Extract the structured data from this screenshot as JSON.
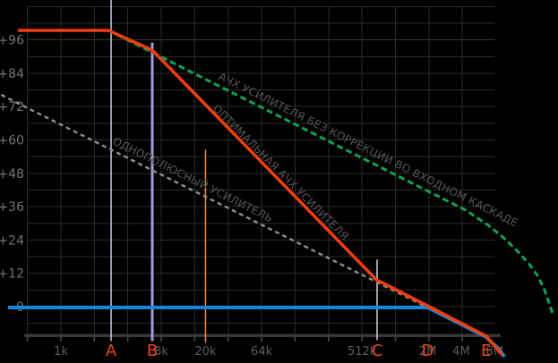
{
  "chart_data": {
    "type": "line",
    "title": "",
    "description": "Amplifier gain (dB) versus frequency (log scale) Bode magnitude plot with correction break-point markers A-E",
    "x_axis": {
      "unit": "Hz",
      "scale": "log",
      "grid_interval": "octave",
      "grid_from_hz": 500,
      "grid_to_hz": 8000000,
      "ticks": [
        {
          "label": "1k",
          "hz": 1000
        },
        {
          "label": "8k",
          "hz": 8000
        },
        {
          "label": "20k",
          "hz": 20000
        },
        {
          "label": "64k",
          "hz": 64000
        },
        {
          "label": "512k",
          "hz": 512000
        },
        {
          "label": "2M",
          "hz": 2000000
        },
        {
          "label": "4M",
          "hz": 4000000
        },
        {
          "label": "8M",
          "hz": 8000000
        }
      ]
    },
    "y_axis": {
      "unit": "dB",
      "grid_step_db": 6,
      "top_db": 108,
      "bottom_db": -6,
      "ticks": [
        {
          "label": "+96",
          "db": 96
        },
        {
          "label": "+84",
          "db": 84
        },
        {
          "label": "+72",
          "db": 72
        },
        {
          "label": "+60",
          "db": 60
        },
        {
          "label": "+48",
          "db": 48
        },
        {
          "label": "+36",
          "db": 36
        },
        {
          "label": "+24",
          "db": 24
        },
        {
          "label": "+12",
          "db": 12
        },
        {
          "label": "0",
          "db": 0
        }
      ]
    },
    "series": [
      {
        "name": "single-pole-amplifier",
        "annotation": "ОДНОПОЛЮСНЫЙ УСИЛИТЕЛЬ",
        "color": "#8f8f8f",
        "dash": "5 4",
        "width": 2.4,
        "points": [
          [
            290,
            76.2
          ],
          [
            7100000,
            -11.3
          ]
        ]
      },
      {
        "name": "uncorrected-input-stage",
        "annotation": "АЧХ УСИЛИТЕЛЯ БЕЗ КОРРЕКЦИИ ВО ВХОДНОМ КАСКАДЕ",
        "color": "#10a156",
        "dash": "7 4",
        "width": 3,
        "points": [
          [
            2680,
            99.4
          ],
          [
            4400000,
            34.7
          ],
          [
            7000000,
            29.3
          ],
          [
            10100000,
            24.1
          ],
          [
            13300000,
            19.3
          ],
          [
            16600000,
            15.1
          ],
          [
            19600000,
            10.9
          ],
          [
            22300000,
            6.4
          ],
          [
            24400000,
            1.9
          ],
          [
            26700000,
            -2.6
          ]
        ]
      },
      {
        "name": "unity-gain-line",
        "annotation": "",
        "color": "#1589e0",
        "dash": "",
        "width": 4,
        "points": [
          [
            334,
            -0.3
          ],
          [
            2000000,
            -0.3
          ],
          [
            6700000,
            -10.9
          ],
          [
            8600000,
            -15.1
          ],
          [
            9800000,
            -18
          ]
        ]
      },
      {
        "name": "optimal-response",
        "annotation": "ОПТИМАЛЬНАЯ АЧХ УСИЛИТЕЛЯ",
        "color": "#f23d0d",
        "dash": "",
        "width": 3.5,
        "points": [
          [
            410,
            99.4
          ],
          [
            2680,
            99.4
          ],
          [
            6640,
            92.3
          ],
          [
            690000,
            9.7
          ],
          [
            2000000,
            0.3
          ],
          [
            6700000,
            -10.6
          ],
          [
            9400000,
            -17.4
          ]
        ]
      }
    ],
    "annotations": [
      {
        "text": "АЧХ УСИЛИТЕЛЯ БЕЗ КОРРЕКЦИИ ВО ВХОДНОМ КАСКАДЕ",
        "hz": 25800,
        "db": 82.0,
        "slope_db_per_octave": -6,
        "color": "#575757",
        "font_px": 12,
        "spacing": 0.2
      },
      {
        "text": "ОПТИМАЛЬНАЯ АЧХ УСИЛИТЕЛЯ",
        "hz": 23000,
        "db": 71.1,
        "slope_db_per_octave": -12,
        "color": "#575757",
        "font_px": 12,
        "spacing": 0.2
      },
      {
        "text": "ОДНОПОЛЮСНЫЙ УСИЛИТЕЛЬ",
        "hz": 2880,
        "db": 58.7,
        "slope_db_per_octave": -6,
        "color": "#575757",
        "font_px": 12,
        "spacing": 0.2
      }
    ],
    "markers": [
      {
        "letter": "A",
        "hz": 2830,
        "line_color": "#c6cce0",
        "line_width": 1.5,
        "top_db": 110.5,
        "bottom_db": -12.4
      },
      {
        "letter": "B",
        "hz": 6640,
        "line_color": "#a79ad9",
        "line_width": 3,
        "top_db": 95,
        "bottom_db": -12.4
      },
      {
        "letter": "",
        "hz": 20000,
        "line_color": "#f5863c",
        "line_width": 1.5,
        "top_db": 56.5,
        "bottom_db": -13
      },
      {
        "letter": "C",
        "hz": 700000,
        "line_color": "#c9ced7",
        "line_width": 1.5,
        "top_db": 17,
        "bottom_db": -12
      },
      {
        "letter": "D",
        "hz": 2000000,
        "line_color": "",
        "line_width": 0,
        "top_db": 0,
        "bottom_db": 0
      },
      {
        "letter": "E",
        "hz": 6700000,
        "line_color": "",
        "line_width": 0,
        "top_db": 0,
        "bottom_db": 0
      }
    ],
    "style": {
      "bg": "#000000",
      "grid": "#2b2b2b",
      "grid_highlight_db": 96,
      "grid_highlight": "#4a3228",
      "axis_bar": "#3b3938",
      "tick": "#4f4f4f",
      "y_label_color": "#747474",
      "x_label_color": "#5d5d5d",
      "letter_color": "#ee4713",
      "letter_font_px": 18,
      "axis_label_font_px": 13,
      "y_label_font_px": 14
    }
  }
}
